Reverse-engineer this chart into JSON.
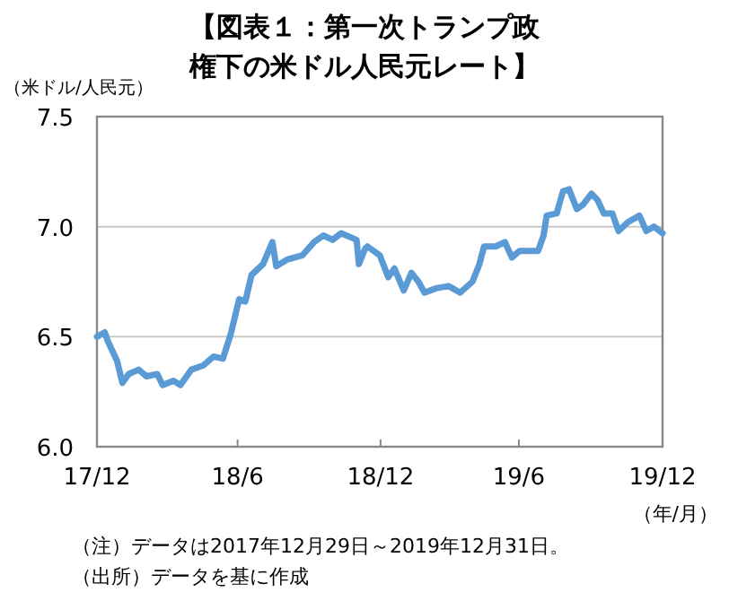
{
  "chart_data": {
    "type": "line",
    "title": "【図表１：第一次トランプ政権下の米ドル人民元レート】",
    "ylabel": "（米ドル/人民元）",
    "xlabel": "（年/月）",
    "annotations": [
      "（注）データは2017年12月29日～2019年12月31日。",
      "（出所）データを基に作成"
    ],
    "x": [
      "2017-12-29",
      "2018-01-08",
      "2018-01-12",
      "2018-01-24",
      "2018-01-31",
      "2018-02-08",
      "2018-02-21",
      "2018-03-03",
      "2018-03-17",
      "2018-03-24",
      "2018-04-07",
      "2018-04-16",
      "2018-04-30",
      "2018-05-16",
      "2018-05-29",
      "2018-06-10",
      "2018-06-20",
      "2018-07-01",
      "2018-07-09",
      "2018-07-17",
      "2018-08-01",
      "2018-08-13",
      "2018-08-18",
      "2018-09-01",
      "2018-09-21",
      "2018-10-06",
      "2018-10-18",
      "2018-10-30",
      "2018-11-10",
      "2018-11-30",
      "2018-12-03",
      "2018-12-11",
      "2018-12-14",
      "2018-12-30",
      "2019-01-10",
      "2019-01-18",
      "2019-01-30",
      "2019-02-09",
      "2019-02-18",
      "2019-02-26",
      "2019-03-13",
      "2019-03-29",
      "2019-04-13",
      "2019-04-29",
      "2019-05-08",
      "2019-05-14",
      "2019-05-29",
      "2019-06-10",
      "2019-06-19",
      "2019-06-29",
      "2019-07-23",
      "2019-07-30",
      "2019-08-03",
      "2019-08-16",
      "2019-08-24",
      "2019-09-01",
      "2019-09-11",
      "2019-09-19",
      "2019-09-30",
      "2019-10-08",
      "2019-10-16",
      "2019-10-27",
      "2019-11-04",
      "2019-11-16",
      "2019-12-01",
      "2019-12-10",
      "2019-12-20",
      "2019-12-31"
    ],
    "values": [
      6.5,
      6.52,
      6.48,
      6.39,
      6.29,
      6.33,
      6.35,
      6.32,
      6.33,
      6.28,
      6.3,
      6.28,
      6.35,
      6.37,
      6.41,
      6.4,
      6.51,
      6.67,
      6.66,
      6.78,
      6.83,
      6.93,
      6.82,
      6.85,
      6.87,
      6.93,
      6.96,
      6.94,
      6.97,
      6.94,
      6.83,
      6.9,
      6.91,
      6.87,
      6.77,
      6.81,
      6.71,
      6.79,
      6.75,
      6.7,
      6.72,
      6.73,
      6.7,
      6.75,
      6.83,
      6.91,
      6.91,
      6.93,
      6.86,
      6.89,
      6.89,
      6.96,
      7.05,
      7.06,
      7.16,
      7.17,
      7.08,
      7.1,
      7.15,
      7.12,
      7.06,
      7.06,
      6.98,
      7.02,
      7.05,
      6.98,
      7.0,
      6.97
    ],
    "color": "#5b9bd5",
    "xlim": [
      "2017-12-29",
      "2019-12-31"
    ],
    "xticks": [
      {
        "value": "2017-12-29",
        "label": "17/12"
      },
      {
        "value": "2018-06-29",
        "label": "18/6"
      },
      {
        "value": "2018-12-31",
        "label": "18/12"
      },
      {
        "value": "2019-06-28",
        "label": "19/6"
      },
      {
        "value": "2019-12-31",
        "label": "19/12"
      }
    ],
    "ylim": [
      6.0,
      7.5
    ],
    "yticks": [
      {
        "value": 6,
        "label": "6.0"
      },
      6.5,
      {
        "value": 7,
        "label": "7.0"
      },
      7.5
    ],
    "grid": "y",
    "marker": "none",
    "line_style": "solid"
  }
}
